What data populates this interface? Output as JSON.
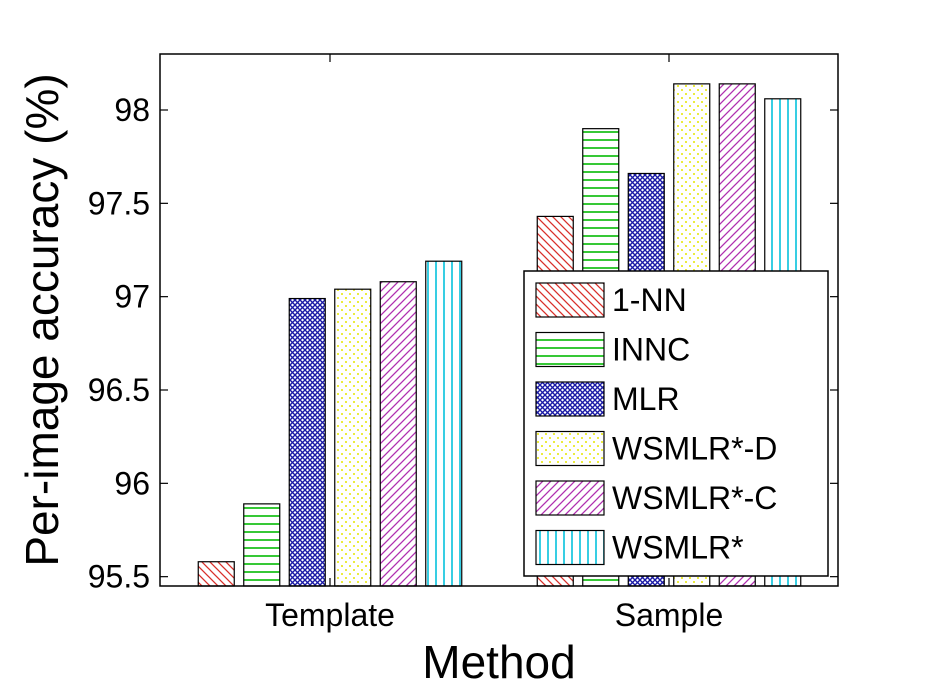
{
  "chart_data": {
    "type": "bar",
    "xlabel": "Method",
    "ylabel": "Per-image accuracy (%)",
    "ylim": [
      95.45,
      98.3
    ],
    "yticks": [
      "95.5",
      "96",
      "96.5",
      "97",
      "97.5",
      "98"
    ],
    "ytick_values": [
      95.5,
      96,
      96.5,
      97,
      97.5,
      98
    ],
    "categories": [
      "Template",
      "Sample"
    ],
    "legend_position": "lower-right",
    "series": [
      {
        "name": "1-NN",
        "values": [
          95.58,
          97.43
        ],
        "color": "#d9302a",
        "pattern": "diag-left"
      },
      {
        "name": "INNC",
        "values": [
          95.89,
          97.9
        ],
        "color": "#1fc21f",
        "pattern": "horizontal"
      },
      {
        "name": "MLR",
        "values": [
          96.99,
          97.66
        ],
        "color": "#1a1aa6",
        "pattern": "crosshatch"
      },
      {
        "name": "WSMLR*-D",
        "values": [
          97.04,
          98.14
        ],
        "color": "#e6e600",
        "pattern": "dots"
      },
      {
        "name": "WSMLR*-C",
        "values": [
          97.08,
          98.14
        ],
        "color": "#b030b0",
        "pattern": "diag-right"
      },
      {
        "name": "WSMLR*",
        "values": [
          97.19,
          98.06
        ],
        "color": "#22c8e0",
        "pattern": "vertical"
      }
    ]
  }
}
